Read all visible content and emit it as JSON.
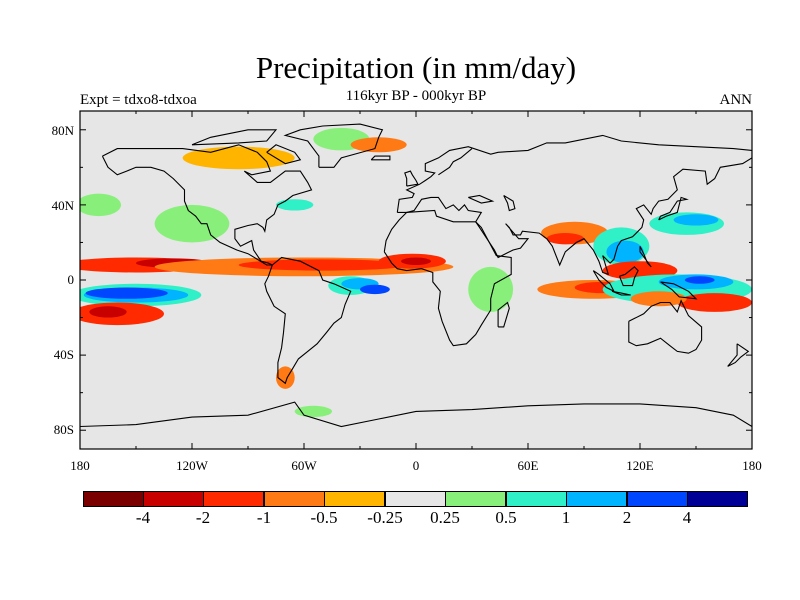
{
  "figure": {
    "title": "Precipitation (in mm/day)",
    "subtitle": "116kyr BP - 000kyr BP",
    "left_label": "Expt = tdxo8-tdxoa",
    "right_label": "ANN"
  },
  "axes": {
    "y_ticks": [
      "80N",
      "40N",
      "0",
      "40S",
      "80S"
    ],
    "x_ticks": [
      "180",
      "120W",
      "60W",
      "0",
      "60E",
      "120E",
      "180"
    ]
  },
  "colorbar": {
    "colors": [
      "#7a0000",
      "#c80000",
      "#ff2a00",
      "#ff7a14",
      "#ffb400",
      "#e6e6e6",
      "#88f07a",
      "#30f0c8",
      "#00b4ff",
      "#0046ff",
      "#000096"
    ],
    "labels": [
      "-4",
      "-2",
      "-1",
      "-0.5",
      "-0.25",
      "0.25",
      "0.5",
      "1",
      "2",
      "4"
    ]
  },
  "map": {
    "background": "#e6e6e6",
    "coastline_color": "#000000",
    "anomalies": [
      {
        "lon": -150,
        "lat": 8,
        "rx": 40,
        "ry": 4,
        "level": "-1"
      },
      {
        "lon": -130,
        "lat": 9,
        "rx": 20,
        "ry": 2.5,
        "level": "-2"
      },
      {
        "lon": -60,
        "lat": 7,
        "rx": 80,
        "ry": 5,
        "level": "-0.5"
      },
      {
        "lon": -50,
        "lat": 8,
        "rx": 45,
        "ry": 3,
        "level": "-1"
      },
      {
        "lon": -2,
        "lat": 10,
        "rx": 18,
        "ry": 4,
        "level": "-1"
      },
      {
        "lon": 0,
        "lat": 10,
        "rx": 8,
        "ry": 2,
        "level": "-2"
      },
      {
        "lon": -150,
        "lat": -8,
        "rx": 35,
        "ry": 6,
        "level": "0.5"
      },
      {
        "lon": -150,
        "lat": -8,
        "rx": 28,
        "ry": 4,
        "level": "1"
      },
      {
        "lon": -155,
        "lat": -7,
        "rx": 22,
        "ry": 3,
        "level": "2"
      },
      {
        "lon": -160,
        "lat": -18,
        "rx": 25,
        "ry": 6,
        "level": "-1"
      },
      {
        "lon": -165,
        "lat": -17,
        "rx": 10,
        "ry": 3,
        "level": "-2"
      },
      {
        "lon": -170,
        "lat": 40,
        "rx": 12,
        "ry": 6,
        "level": "0.25"
      },
      {
        "lon": -120,
        "lat": 30,
        "rx": 20,
        "ry": 10,
        "level": "0.25"
      },
      {
        "lon": -95,
        "lat": 65,
        "rx": 30,
        "ry": 6,
        "level": "-0.25"
      },
      {
        "lon": -40,
        "lat": 75,
        "rx": 15,
        "ry": 6,
        "level": "0.25"
      },
      {
        "lon": -20,
        "lat": 72,
        "rx": 15,
        "ry": 4,
        "level": "-0.5"
      },
      {
        "lon": -65,
        "lat": 40,
        "rx": 10,
        "ry": 3,
        "level": "0.5"
      },
      {
        "lon": -35,
        "lat": -3,
        "rx": 12,
        "ry": 5,
        "level": "0.5"
      },
      {
        "lon": -30,
        "lat": -2,
        "rx": 10,
        "ry": 3,
        "level": "1"
      },
      {
        "lon": -22,
        "lat": -5,
        "rx": 8,
        "ry": 2.5,
        "level": "2"
      },
      {
        "lon": 40,
        "lat": -5,
        "rx": 12,
        "ry": 12,
        "level": "0.25"
      },
      {
        "lon": 85,
        "lat": 25,
        "rx": 18,
        "ry": 6,
        "level": "-0.5"
      },
      {
        "lon": 80,
        "lat": 22,
        "rx": 10,
        "ry": 3,
        "level": "-1"
      },
      {
        "lon": 110,
        "lat": 18,
        "rx": 15,
        "ry": 10,
        "level": "0.5"
      },
      {
        "lon": 112,
        "lat": 15,
        "rx": 10,
        "ry": 6,
        "level": "1"
      },
      {
        "lon": 145,
        "lat": 30,
        "rx": 20,
        "ry": 6,
        "level": "0.5"
      },
      {
        "lon": 150,
        "lat": 32,
        "rx": 12,
        "ry": 3,
        "level": "1"
      },
      {
        "lon": 120,
        "lat": 5,
        "rx": 20,
        "ry": 5,
        "level": "-1"
      },
      {
        "lon": 95,
        "lat": -5,
        "rx": 30,
        "ry": 5,
        "level": "-0.5"
      },
      {
        "lon": 100,
        "lat": -4,
        "rx": 15,
        "ry": 3,
        "level": "-1"
      },
      {
        "lon": 140,
        "lat": -5,
        "rx": 40,
        "ry": 8,
        "level": "0.5"
      },
      {
        "lon": 150,
        "lat": -1,
        "rx": 20,
        "ry": 4,
        "level": "1"
      },
      {
        "lon": 152,
        "lat": 0,
        "rx": 8,
        "ry": 2,
        "level": "2"
      },
      {
        "lon": 160,
        "lat": -12,
        "rx": 20,
        "ry": 5,
        "level": "-1"
      },
      {
        "lon": 130,
        "lat": -10,
        "rx": 15,
        "ry": 4,
        "level": "-0.5"
      },
      {
        "lon": -70,
        "lat": -52,
        "rx": 5,
        "ry": 6,
        "level": "-0.5"
      },
      {
        "lon": -55,
        "lat": -70,
        "rx": 10,
        "ry": 3,
        "level": "0.25"
      }
    ]
  }
}
